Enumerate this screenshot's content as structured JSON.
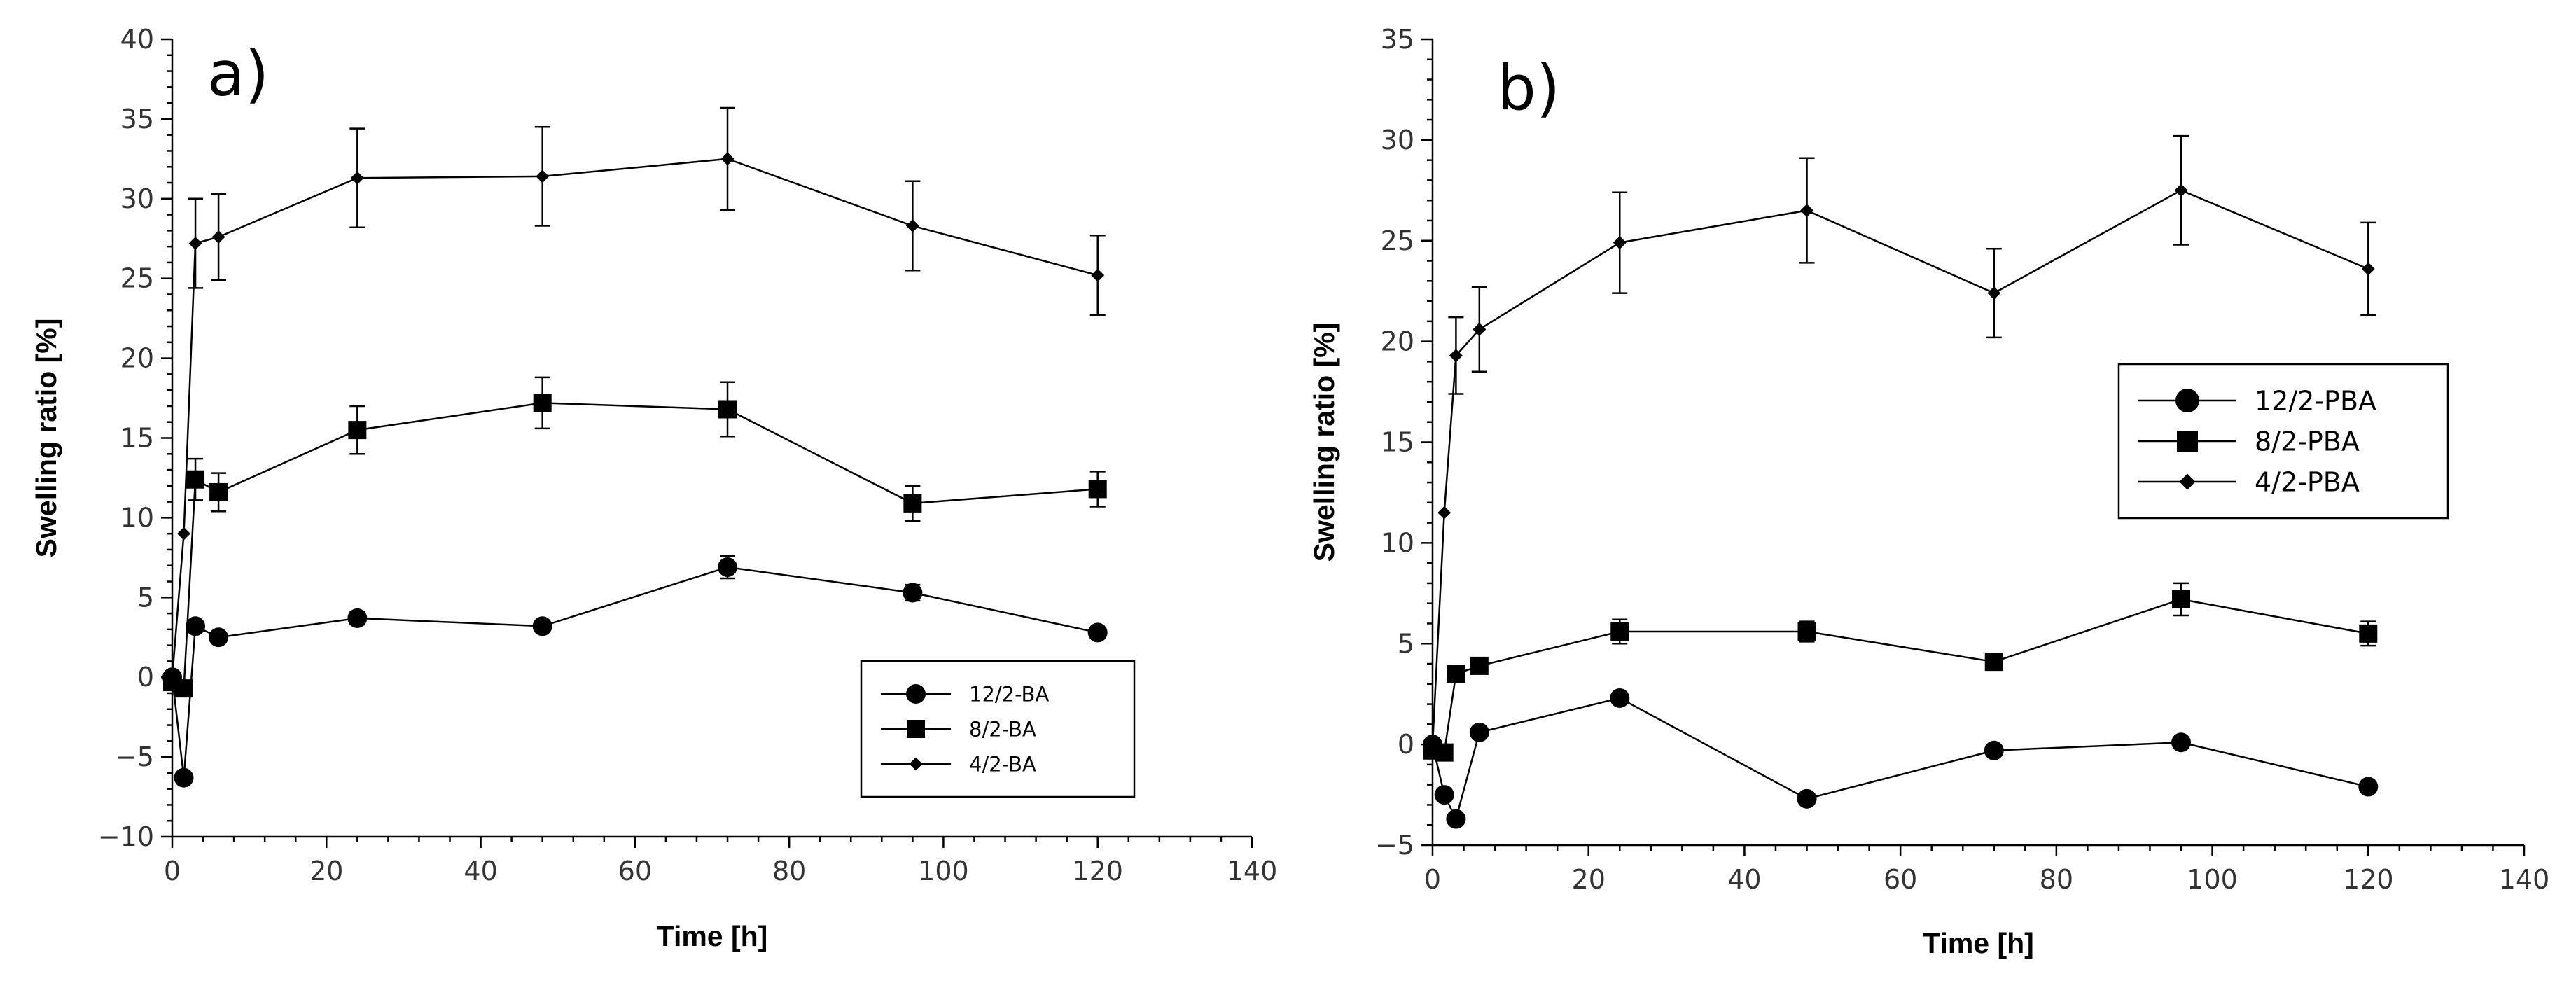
{
  "chart_data": [
    {
      "type": "line",
      "panel_label": "a)",
      "xlabel": "Time [h]",
      "ylabel": "Swelling ratio [%]",
      "xlim": [
        0,
        140
      ],
      "ylim": [
        -10,
        40
      ],
      "xticks": [
        0,
        20,
        40,
        60,
        80,
        100,
        120,
        140
      ],
      "yticks": [
        -10,
        -5,
        0,
        5,
        10,
        15,
        20,
        25,
        30,
        35,
        40
      ],
      "grid": false,
      "legend_position": "bottom-right",
      "x": [
        0,
        1.5,
        3,
        6,
        24,
        48,
        72,
        96,
        120
      ],
      "series": [
        {
          "name": "12/2-BA",
          "marker": "circle",
          "values": [
            0,
            -6.3,
            3.2,
            2.5,
            3.7,
            3.2,
            6.9,
            5.3,
            2.8
          ],
          "errors": [
            0,
            0,
            0,
            0.3,
            0.4,
            0,
            0.7,
            0.5,
            0
          ]
        },
        {
          "name": "8/2-BA",
          "marker": "square",
          "values": [
            -0.3,
            -0.7,
            12.4,
            11.6,
            15.5,
            17.2,
            16.8,
            10.9,
            11.8
          ],
          "errors": [
            0,
            0,
            1.3,
            1.2,
            1.5,
            1.6,
            1.7,
            1.1,
            1.1
          ]
        },
        {
          "name": "4/2-BA",
          "marker": "diamond",
          "values": [
            0,
            9.0,
            27.2,
            27.6,
            31.3,
            31.4,
            32.5,
            28.3,
            25.2
          ],
          "errors": [
            0,
            0,
            2.8,
            2.7,
            3.1,
            3.1,
            3.2,
            2.8,
            2.5
          ]
        }
      ]
    },
    {
      "type": "line",
      "panel_label": "b)",
      "xlabel": "Time [h]",
      "ylabel": "Swelling ratio [%]",
      "xlim": [
        0,
        140
      ],
      "ylim": [
        -5,
        35
      ],
      "xticks": [
        0,
        20,
        40,
        60,
        80,
        100,
        120,
        140
      ],
      "yticks": [
        -5,
        0,
        5,
        10,
        15,
        20,
        25,
        30,
        35
      ],
      "grid": false,
      "legend_position": "middle-right",
      "x": [
        0,
        1.5,
        3,
        6,
        24,
        48,
        72,
        96,
        120
      ],
      "series": [
        {
          "name": "12/2-PBA",
          "marker": "circle",
          "values": [
            0,
            -2.5,
            -3.7,
            0.6,
            2.3,
            -2.7,
            -0.3,
            0.1,
            -2.1
          ],
          "errors": [
            0,
            0,
            0,
            0,
            0,
            0,
            0,
            0,
            0
          ]
        },
        {
          "name": "8/2-PBA",
          "marker": "square",
          "values": [
            -0.3,
            -0.4,
            3.5,
            3.9,
            5.6,
            5.6,
            4.1,
            7.2,
            5.5
          ],
          "errors": [
            0,
            0,
            0.3,
            0.3,
            0.6,
            0.5,
            0.4,
            0.8,
            0.6
          ]
        },
        {
          "name": "4/2-PBA",
          "marker": "diamond",
          "values": [
            0,
            11.5,
            19.3,
            20.6,
            24.9,
            26.5,
            22.4,
            27.5,
            23.6
          ],
          "errors": [
            0,
            0,
            1.9,
            2.1,
            2.5,
            2.6,
            2.2,
            2.7,
            2.3
          ]
        }
      ]
    }
  ]
}
